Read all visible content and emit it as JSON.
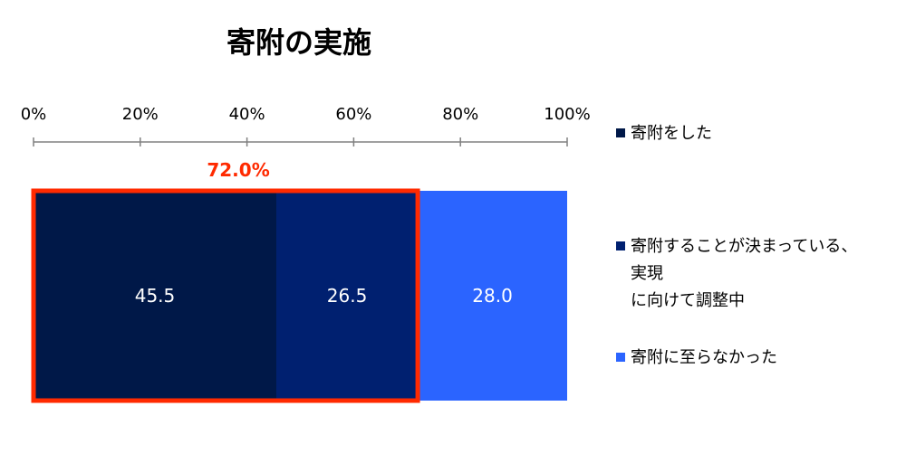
{
  "chart_data": {
    "type": "bar",
    "orientation": "horizontal",
    "stacked": true,
    "title": "寄附の実施",
    "x_ticks": [
      "0%",
      "20%",
      "40%",
      "60%",
      "80%",
      "100%"
    ],
    "xlim": [
      0,
      100
    ],
    "series": [
      {
        "name": "寄附をした",
        "value": 45.5,
        "label": "45.5",
        "color": "#001848"
      },
      {
        "name": "寄附することが決まっている、実現に向けて調整中",
        "value": 26.5,
        "label": "26.5",
        "color": "#002070"
      },
      {
        "name": "寄附に至らなかった",
        "value": 28.0,
        "label": "28.0",
        "color": "#2b64ff"
      }
    ],
    "highlight": {
      "label": "72.0%",
      "from": 0,
      "to": 72.0,
      "color": "#ff2a00"
    },
    "legend": {
      "position": "right",
      "lines": [
        [
          "寄附をした"
        ],
        [
          "寄附することが決まっている、実現",
          "に向けて調整中"
        ],
        [
          "寄附に至らなかった"
        ]
      ]
    },
    "axis_color": "#808080"
  }
}
